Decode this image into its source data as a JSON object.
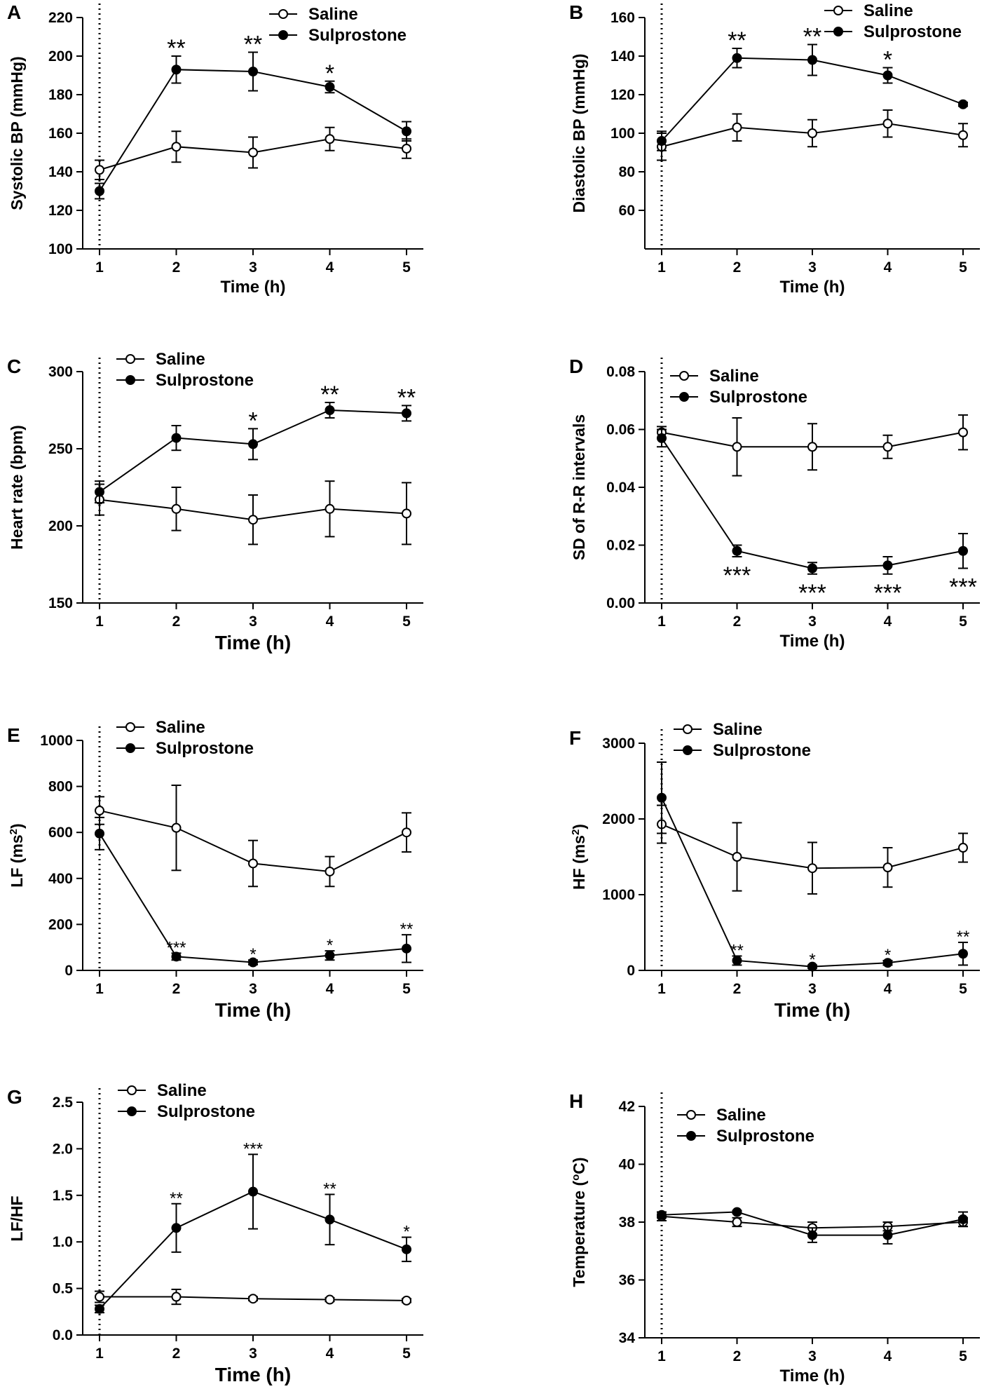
{
  "chart_data": [
    {
      "panel": "A",
      "type": "line",
      "xlabel": "Time (h)",
      "ylabel": "Systolic BP (mmHg)",
      "ylabel_sup": "",
      "ylabel_tail": "",
      "x": [
        1,
        2,
        3,
        4,
        5
      ],
      "xlim": [
        1,
        5
      ],
      "ylim": [
        100,
        220
      ],
      "yticks": [
        100,
        120,
        140,
        160,
        180,
        200,
        220
      ],
      "ydecimals": 0,
      "series": [
        {
          "name": "Saline",
          "marker": "open",
          "values": [
            141,
            153,
            150,
            157,
            152
          ],
          "errors": [
            5,
            8,
            8,
            6,
            5
          ]
        },
        {
          "name": "Sulprostone",
          "marker": "filled",
          "values": [
            130,
            193,
            192,
            184,
            161
          ],
          "errors": [
            4,
            7,
            10,
            3,
            5
          ]
        }
      ],
      "annotations": [
        {
          "x": 2,
          "text": "**",
          "pos": "above"
        },
        {
          "x": 3,
          "text": "**",
          "pos": "above"
        },
        {
          "x": 4,
          "text": "*",
          "pos": "above"
        }
      ]
    },
    {
      "panel": "B",
      "type": "line",
      "xlabel": "Time (h)",
      "ylabel": "Diastolic BP (mmHg)",
      "ylabel_sup": "",
      "ylabel_tail": "",
      "x": [
        1,
        2,
        3,
        4,
        5
      ],
      "xlim": [
        1,
        5
      ],
      "ylim": [
        40,
        160
      ],
      "yticks": [
        60,
        80,
        100,
        120,
        140,
        160
      ],
      "ydecimals": 0,
      "series": [
        {
          "name": "Saline",
          "marker": "open",
          "values": [
            93,
            103,
            100,
            105,
            99
          ],
          "errors": [
            7,
            7,
            7,
            7,
            6
          ]
        },
        {
          "name": "Sulprostone",
          "marker": "filled",
          "values": [
            96,
            139,
            138,
            130,
            115
          ],
          "errors": [
            5,
            5,
            8,
            4,
            1
          ]
        }
      ],
      "annotations": [
        {
          "x": 2,
          "text": "**",
          "pos": "above"
        },
        {
          "x": 3,
          "text": "**",
          "pos": "above"
        },
        {
          "x": 4,
          "text": "*",
          "pos": "above"
        }
      ]
    },
    {
      "panel": "C",
      "type": "line",
      "xlabel": "Time (h)",
      "ylabel": "Heart rate (bpm)",
      "ylabel_sup": "",
      "ylabel_tail": "",
      "x": [
        1,
        2,
        3,
        4,
        5
      ],
      "xlim": [
        1,
        5
      ],
      "ylim": [
        150,
        300
      ],
      "yticks": [
        150,
        200,
        250,
        300
      ],
      "ydecimals": 0,
      "series": [
        {
          "name": "Saline",
          "marker": "open",
          "values": [
            217,
            211,
            204,
            211,
            208
          ],
          "errors": [
            10,
            14,
            16,
            18,
            20
          ]
        },
        {
          "name": "Sulprostone",
          "marker": "filled",
          "values": [
            222,
            257,
            253,
            275,
            273
          ],
          "errors": [
            7,
            8,
            10,
            5,
            5
          ]
        }
      ],
      "annotations": [
        {
          "x": 3,
          "text": "*",
          "pos": "above"
        },
        {
          "x": 4,
          "text": "**",
          "pos": "above"
        },
        {
          "x": 5,
          "text": "**",
          "pos": "above"
        }
      ]
    },
    {
      "panel": "D",
      "type": "line",
      "xlabel": "Time (h)",
      "ylabel": "SD of R-R intervals",
      "ylabel_sup": "",
      "ylabel_tail": "",
      "x": [
        1,
        2,
        3,
        4,
        5
      ],
      "xlim": [
        1,
        5
      ],
      "ylim": [
        0,
        0.08
      ],
      "yticks": [
        0,
        0.02,
        0.04,
        0.06,
        0.08
      ],
      "ydecimals": 2,
      "series": [
        {
          "name": "Saline",
          "marker": "open",
          "values": [
            0.059,
            0.054,
            0.054,
            0.054,
            0.059
          ],
          "errors": [
            0.002,
            0.01,
            0.008,
            0.004,
            0.006
          ]
        },
        {
          "name": "Sulprostone",
          "marker": "filled",
          "values": [
            0.057,
            0.018,
            0.012,
            0.013,
            0.018
          ],
          "errors": [
            0.003,
            0.002,
            0.002,
            0.003,
            0.006
          ]
        }
      ],
      "annotations": [
        {
          "x": 2,
          "text": "***",
          "pos": "below"
        },
        {
          "x": 3,
          "text": "***",
          "pos": "below"
        },
        {
          "x": 4,
          "text": "***",
          "pos": "below"
        },
        {
          "x": 5,
          "text": "***",
          "pos": "below"
        }
      ]
    },
    {
      "panel": "E",
      "type": "line",
      "xlabel": "Time (h)",
      "ylabel": "LF (ms",
      "ylabel_sup": "2",
      "ylabel_tail": ")",
      "x": [
        1,
        2,
        3,
        4,
        5
      ],
      "xlim": [
        1,
        5
      ],
      "ylim": [
        0,
        1000
      ],
      "yticks": [
        0,
        200,
        400,
        600,
        800,
        1000
      ],
      "ydecimals": 0,
      "series": [
        {
          "name": "Saline",
          "marker": "open",
          "values": [
            695,
            620,
            465,
            430,
            600
          ],
          "errors": [
            60,
            185,
            100,
            65,
            85
          ]
        },
        {
          "name": "Sulprostone",
          "marker": "filled",
          "values": [
            595,
            60,
            35,
            65,
            95
          ],
          "errors": [
            70,
            15,
            10,
            20,
            60
          ]
        }
      ],
      "annotations": [
        {
          "x": 2,
          "text": "***",
          "pos": "above"
        },
        {
          "x": 3,
          "text": "*",
          "pos": "above"
        },
        {
          "x": 4,
          "text": "*",
          "pos": "above"
        },
        {
          "x": 5,
          "text": "**",
          "pos": "above"
        }
      ]
    },
    {
      "panel": "F",
      "type": "line",
      "xlabel": "Time (h)",
      "ylabel": "HF (ms",
      "ylabel_sup": "2",
      "ylabel_tail": ")",
      "x": [
        1,
        2,
        3,
        4,
        5
      ],
      "xlim": [
        1,
        5
      ],
      "ylim": [
        0,
        3000
      ],
      "yticks": [
        0,
        1000,
        2000,
        3000
      ],
      "ydecimals": 0,
      "series": [
        {
          "name": "Saline",
          "marker": "open",
          "values": [
            1930,
            1500,
            1350,
            1360,
            1620
          ],
          "errors": [
            250,
            450,
            340,
            260,
            190
          ]
        },
        {
          "name": "Sulprostone",
          "marker": "filled",
          "values": [
            2280,
            130,
            50,
            100,
            220
          ],
          "errors": [
            470,
            60,
            20,
            30,
            150
          ]
        }
      ],
      "annotations": [
        {
          "x": 2,
          "text": "**",
          "pos": "above"
        },
        {
          "x": 3,
          "text": "*",
          "pos": "above"
        },
        {
          "x": 4,
          "text": "*",
          "pos": "above"
        },
        {
          "x": 5,
          "text": "**",
          "pos": "above"
        }
      ]
    },
    {
      "panel": "G",
      "type": "line",
      "xlabel": "Time (h)",
      "ylabel": "LF/HF",
      "ylabel_sup": "",
      "ylabel_tail": "",
      "x": [
        1,
        2,
        3,
        4,
        5
      ],
      "xlim": [
        1,
        5
      ],
      "ylim": [
        0,
        2.5
      ],
      "yticks": [
        0,
        0.5,
        1.0,
        1.5,
        2.0,
        2.5
      ],
      "ydecimals": 1,
      "series": [
        {
          "name": "Saline",
          "marker": "open",
          "values": [
            0.41,
            0.41,
            0.39,
            0.38,
            0.37
          ],
          "errors": [
            0.06,
            0.08,
            0.02,
            0.02,
            0.02
          ]
        },
        {
          "name": "Sulprostone",
          "marker": "filled",
          "values": [
            0.28,
            1.15,
            1.54,
            1.24,
            0.92
          ],
          "errors": [
            0.04,
            0.26,
            0.4,
            0.27,
            0.13
          ]
        }
      ],
      "annotations": [
        {
          "x": 2,
          "text": "**",
          "pos": "above"
        },
        {
          "x": 3,
          "text": "***",
          "pos": "above"
        },
        {
          "x": 4,
          "text": "**",
          "pos": "above"
        },
        {
          "x": 5,
          "text": "*",
          "pos": "above"
        }
      ]
    },
    {
      "panel": "H",
      "type": "line",
      "xlabel": "Time (h)",
      "ylabel": "Temperature (",
      "ylabel_sup": "o",
      "ylabel_tail": "C)",
      "x": [
        1,
        2,
        3,
        4,
        5
      ],
      "xlim": [
        1,
        5
      ],
      "ylim": [
        34,
        42
      ],
      "yticks": [
        34,
        36,
        38,
        40,
        42
      ],
      "ydecimals": 0,
      "series": [
        {
          "name": "Saline",
          "marker": "open",
          "values": [
            38.2,
            38.0,
            37.8,
            37.85,
            38.0
          ],
          "errors": [
            0.15,
            0.15,
            0.2,
            0.15,
            0.15
          ]
        },
        {
          "name": "Sulprostone",
          "marker": "filled",
          "values": [
            38.25,
            38.35,
            37.55,
            37.55,
            38.1
          ],
          "errors": [
            0.1,
            0.05,
            0.25,
            0.3,
            0.25
          ]
        }
      ],
      "annotations": []
    }
  ],
  "colors": {
    "ink": "#000000",
    "background": "#ffffff"
  }
}
